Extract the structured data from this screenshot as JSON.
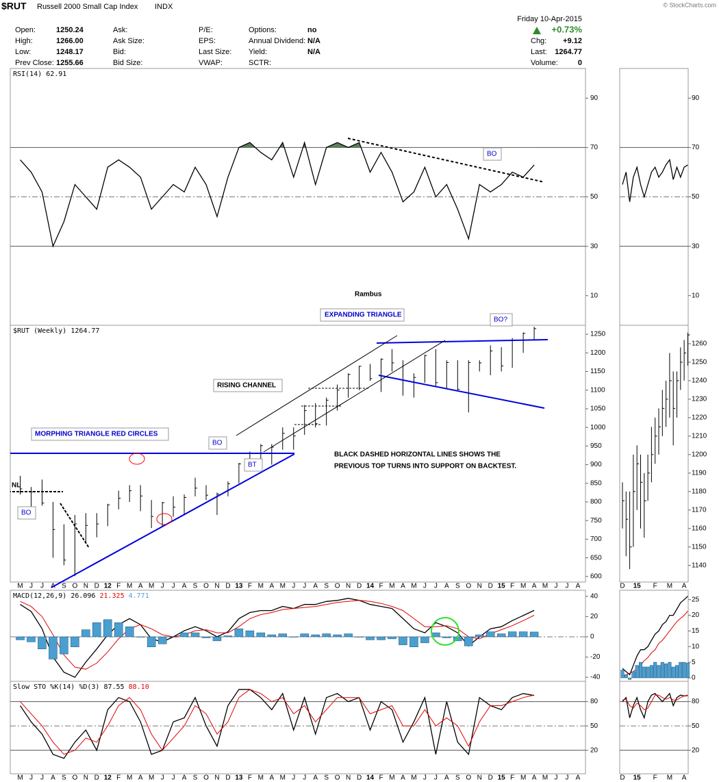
{
  "header": {
    "symbol": "$RUT",
    "name": "Russell 2000 Small Cap Index",
    "exchange": "INDX",
    "copyright": "© StockCharts.com",
    "date": "Friday 10-Apr-2015",
    "change_pct": "+0.73%",
    "quote": [
      [
        {
          "label": "Open:",
          "value": "1250.24"
        },
        {
          "label": "High:",
          "value": "1266.00"
        },
        {
          "label": "Low:",
          "value": "1248.17"
        },
        {
          "label": "Prev Close:",
          "value": "1255.66"
        }
      ],
      [
        {
          "label": "Ask:"
        },
        {
          "label": "Ask Size:"
        },
        {
          "label": "Bid:"
        },
        {
          "label": "Bid Size:"
        }
      ],
      [
        {
          "label": "P/E:"
        },
        {
          "label": "EPS:"
        },
        {
          "label": "Last Size:"
        },
        {
          "label": "VWAP:"
        }
      ],
      [
        {
          "label": "Options:",
          "value": "no"
        },
        {
          "label": "Annual Dividend:",
          "value": "N/A"
        },
        {
          "label": "Yield:",
          "value": "N/A"
        },
        {
          "label": "SCTR:"
        }
      ]
    ],
    "summary": [
      {
        "label": "Chg:",
        "value": "+9.12"
      },
      {
        "label": "Last:",
        "value": "1264.77"
      },
      {
        "label": "Volume:",
        "value": "0"
      }
    ]
  },
  "annotations": [
    "EXPANDING TRIANGLE",
    "RISING CHANNEL",
    "MORPHING TRIANGLE RED CIRCLES",
    "BLACK DASHED HORIZONTAL LINES SHOWS THE",
    "PREVIOUS TOP TURNS INTO SUPPORT ON BACKTEST.",
    "BO",
    "BO",
    "BO",
    "BO?",
    "BT",
    "NL",
    "Rambus"
  ],
  "chart_data": [
    {
      "type": "line",
      "label": [
        "RSI(14)",
        "62.91"
      ],
      "ylim": [
        -2,
        102
      ],
      "yticks": [
        10,
        30,
        50,
        70,
        90
      ],
      "bands": [
        30,
        70
      ],
      "midline": 50,
      "overbought_fill": "#5d7f5d",
      "series": [
        {
          "color": "#000",
          "values": [
            65,
            60,
            52,
            30,
            40,
            55,
            50,
            45,
            62,
            65,
            62,
            58,
            45,
            50,
            55,
            52,
            62,
            55,
            42,
            58,
            70,
            72,
            68,
            65,
            72,
            58,
            72,
            55,
            70,
            72,
            70,
            72,
            60,
            68,
            60,
            48,
            52,
            62,
            50,
            55,
            45,
            33,
            55,
            52,
            55,
            60,
            58,
            62.91,
            null,
            null,
            null,
            null
          ]
        }
      ]
    },
    {
      "type": "ohlc",
      "label": [
        "$RUT (Weekly)",
        "1264.77"
      ],
      "color": "#000",
      "ylim": [
        585,
        1274
      ],
      "yticks": [
        600,
        650,
        700,
        750,
        800,
        850,
        900,
        950,
        1000,
        1050,
        1100,
        1150,
        1200,
        1250
      ],
      "categories": [
        "M",
        "J",
        "J",
        "A",
        "S",
        "O",
        "N",
        "D",
        "12",
        "F",
        "M",
        "A",
        "M",
        "J",
        "J",
        "A",
        "S",
        "O",
        "N",
        "D",
        "13",
        "F",
        "M",
        "A",
        "M",
        "J",
        "J",
        "A",
        "S",
        "O",
        "N",
        "D",
        "14",
        "F",
        "M",
        "A",
        "M",
        "J",
        "J",
        "A",
        "S",
        "O",
        "N",
        "D",
        "15",
        "F",
        "M",
        "A",
        "M",
        "J",
        "J",
        "A"
      ],
      "high": [
        870,
        840,
        860,
        800,
        740,
        765,
        770,
        770,
        795,
        830,
        845,
        845,
        805,
        800,
        815,
        820,
        865,
        845,
        825,
        855,
        905,
        935,
        955,
        955,
        1000,
        1000,
        1060,
        1065,
        1080,
        1115,
        1145,
        1165,
        1170,
        1185,
        1210,
        1180,
        1145,
        1195,
        1210,
        1180,
        1180,
        1180,
        1180,
        1220,
        1215,
        1240,
        1255,
        1270,
        null,
        null,
        null,
        null
      ],
      "low": [
        820,
        775,
        790,
        650,
        630,
        601,
        690,
        705,
        735,
        780,
        800,
        775,
        730,
        735,
        760,
        765,
        815,
        805,
        765,
        815,
        850,
        890,
        905,
        900,
        940,
        940,
        980,
        1000,
        1005,
        1045,
        1080,
        1100,
        1125,
        1095,
        1150,
        1085,
        1080,
        1120,
        1110,
        1105,
        1100,
        1040,
        1150,
        1140,
        1150,
        1160,
        1200,
        1235,
        null,
        null,
        null,
        null
      ],
      "close": [
        835,
        827,
        797,
        726,
        644,
        741,
        737,
        741,
        792,
        810,
        830,
        816,
        761,
        798,
        786,
        812,
        837,
        818,
        821,
        849,
        902,
        911,
        951,
        947,
        984,
        977,
        1045,
        1010,
        1073,
        1100,
        1142,
        1164,
        1131,
        1183,
        1173,
        1127,
        1134,
        1193,
        1120,
        1174,
        1102,
        1174,
        1173,
        1205,
        1165,
        1233,
        1252,
        1265,
        null,
        null,
        null,
        null
      ]
    },
    {
      "type": "line",
      "label": [
        "MACD(12,26,9)",
        "26.096",
        "21.325",
        "4.771"
      ],
      "ylim": [
        -44,
        46
      ],
      "yticks": [
        -40,
        -20,
        0,
        20,
        40
      ],
      "midline": 0,
      "series": [
        {
          "color": "#000",
          "values": [
            32,
            25,
            8,
            -20,
            -35,
            -40,
            -25,
            -12,
            2,
            12,
            18,
            12,
            -2,
            -5,
            0,
            6,
            10,
            6,
            0,
            5,
            18,
            24,
            26,
            26,
            30,
            28,
            32,
            32,
            35,
            36,
            38,
            36,
            32,
            30,
            28,
            18,
            8,
            4,
            14,
            10,
            4,
            -9,
            0,
            8,
            10,
            16,
            21,
            26.096,
            null,
            null,
            null,
            null
          ]
        },
        {
          "color": "#e00000",
          "values": [
            35,
            30,
            20,
            2,
            -18,
            -30,
            -32,
            -26,
            -15,
            -2,
            8,
            12,
            8,
            2,
            0,
            2,
            6,
            7,
            4,
            4,
            10,
            18,
            22,
            24,
            27,
            28,
            29,
            30,
            32,
            34,
            35,
            36,
            35,
            33,
            30,
            26,
            18,
            10,
            10,
            11,
            8,
            0,
            -2,
            3,
            7,
            11,
            16,
            21.325,
            null,
            null,
            null,
            null
          ]
        },
        {
          "color": "#4a9fd0",
          "style": "histogram",
          "values": [
            -3,
            -5,
            -12,
            -22,
            -17,
            -10,
            7,
            14,
            17,
            14,
            10,
            0,
            -10,
            -7,
            0,
            4,
            4,
            -1,
            -4,
            1,
            8,
            6,
            4,
            2,
            3,
            0,
            3,
            2,
            3,
            2,
            3,
            0,
            -3,
            -3,
            -2,
            -8,
            -10,
            -6,
            4,
            -1,
            -4,
            -9,
            2,
            5,
            3,
            5,
            5,
            4.771,
            null,
            null,
            null,
            null
          ]
        }
      ]
    },
    {
      "type": "line",
      "label": [
        "Slow STO %K(14) %D(3)",
        "87.55",
        "88.10"
      ],
      "ylim": [
        -9,
        105
      ],
      "yticks": [
        20,
        50,
        80
      ],
      "bands": [
        20,
        80
      ],
      "midline": 50,
      "series": [
        {
          "color": "#000",
          "values": [
            75,
            55,
            40,
            15,
            10,
            30,
            45,
            20,
            70,
            85,
            80,
            55,
            15,
            20,
            55,
            60,
            85,
            50,
            25,
            75,
            95,
            95,
            85,
            70,
            90,
            45,
            85,
            40,
            85,
            90,
            80,
            85,
            45,
            80,
            70,
            30,
            55,
            85,
            15,
            80,
            30,
            15,
            85,
            75,
            70,
            85,
            90,
            87.55,
            null,
            null,
            null,
            null
          ]
        },
        {
          "color": "#e00000",
          "values": [
            80,
            65,
            50,
            30,
            15,
            20,
            35,
            30,
            50,
            75,
            85,
            70,
            40,
            20,
            35,
            50,
            75,
            65,
            40,
            55,
            85,
            95,
            90,
            80,
            85,
            65,
            75,
            55,
            70,
            85,
            85,
            85,
            65,
            70,
            75,
            50,
            50,
            70,
            50,
            60,
            50,
            25,
            55,
            75,
            75,
            80,
            85,
            88.1,
            null,
            null,
            null,
            null
          ]
        }
      ]
    },
    {
      "type": "line",
      "ylim": [
        -2,
        102
      ],
      "yticks": [
        10,
        30,
        50,
        70,
        90
      ],
      "bands": [
        30,
        70
      ],
      "midline": 50,
      "overbought_fill": "#5d7f5d",
      "series": [
        {
          "color": "#000",
          "values": [
            55,
            60,
            48,
            58,
            62,
            55,
            50,
            55,
            60,
            62,
            58,
            60,
            63,
            65,
            57,
            62,
            58,
            62,
            62.91
          ]
        }
      ]
    },
    {
      "type": "ohlc",
      "color": "#000",
      "ylim": [
        1131,
        1270
      ],
      "yticks": [
        1140,
        1150,
        1160,
        1170,
        1180,
        1190,
        1200,
        1210,
        1220,
        1230,
        1240,
        1250,
        1260
      ],
      "categories": [
        "D",
        null,
        null,
        null,
        "15",
        null,
        null,
        null,
        null,
        "F",
        null,
        null,
        null,
        "M",
        null,
        null,
        null,
        "A",
        null
      ],
      "high": [
        1185,
        1180,
        1180,
        1200,
        1205,
        1200,
        1190,
        1200,
        1215,
        1220,
        1225,
        1235,
        1240,
        1255,
        1245,
        1245,
        1258,
        1262,
        1266
      ],
      "low": [
        1160,
        1145,
        1138,
        1150,
        1170,
        1160,
        1155,
        1175,
        1185,
        1195,
        1200,
        1210,
        1215,
        1220,
        1205,
        1220,
        1235,
        1240,
        1248.17
      ],
      "close": [
        1175,
        1165,
        1150,
        1180,
        1195,
        1185,
        1175,
        1190,
        1200,
        1210,
        1215,
        1225,
        1230,
        1240,
        1225,
        1240,
        1250,
        1255,
        1264.77
      ]
    },
    {
      "type": "line",
      "ylim": [
        -1.1,
        28
      ],
      "yticks": [
        0,
        5,
        10,
        15,
        20,
        25
      ],
      "series": [
        {
          "color": "#000",
          "values": [
            3,
            2,
            1,
            4,
            7,
            9,
            9,
            10,
            12,
            14,
            15,
            17,
            18,
            20,
            20,
            22,
            24,
            25,
            26.096
          ]
        },
        {
          "color": "#e00000",
          "values": [
            0.5,
            1,
            1.5,
            2,
            3,
            4,
            5.5,
            6.5,
            8,
            9,
            11,
            12,
            13.5,
            15,
            16.5,
            18,
            19,
            20,
            21.325
          ]
        },
        {
          "color": "#4a9fd0",
          "style": "histogram",
          "values": [
            2.5,
            1,
            -0.5,
            2,
            4,
            5,
            3.5,
            3.5,
            4,
            5,
            4,
            5,
            4.5,
            5,
            3.5,
            4,
            5,
            5,
            4.771
          ]
        }
      ]
    },
    {
      "type": "line",
      "ylim": [
        -9,
        105
      ],
      "yticks": [
        20,
        50,
        80
      ],
      "bands": [
        20,
        80
      ],
      "midline": 50,
      "series": [
        {
          "color": "#000",
          "values": [
            80,
            85,
            60,
            75,
            85,
            70,
            60,
            80,
            88,
            90,
            85,
            80,
            85,
            90,
            75,
            85,
            88,
            87,
            87.55
          ]
        },
        {
          "color": "#e00000",
          "values": [
            82,
            83,
            75,
            72,
            78,
            75,
            70,
            72,
            80,
            88,
            88,
            85,
            83,
            85,
            82,
            82,
            85,
            87,
            88.1
          ]
        }
      ]
    }
  ]
}
